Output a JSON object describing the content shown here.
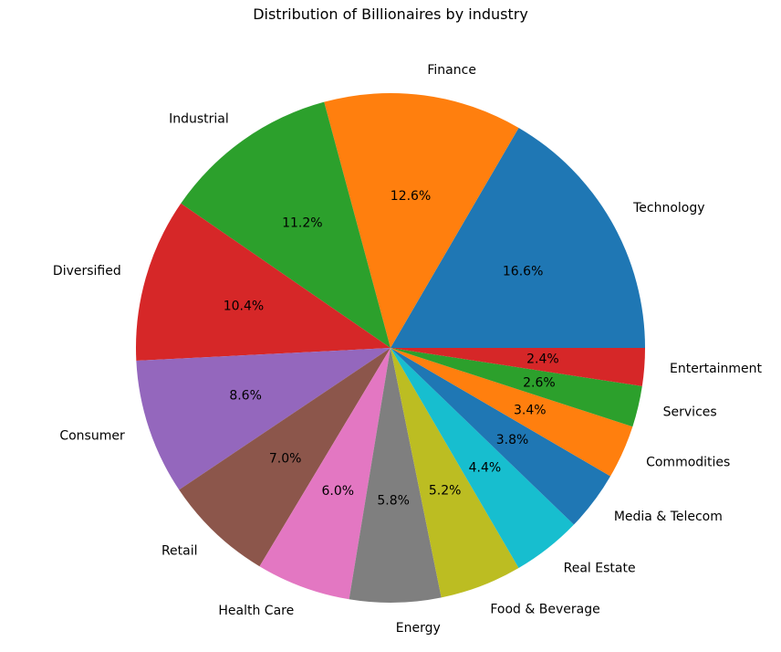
{
  "chart_data": {
    "type": "pie",
    "title": "Distribution of Billionaires by industry",
    "slices": [
      {
        "label": "Technology",
        "value": 16.6,
        "pct_label": "16.6%",
        "color": "#1f77b4"
      },
      {
        "label": "Finance",
        "value": 12.6,
        "pct_label": "12.6%",
        "color": "#ff7f0e"
      },
      {
        "label": "Industrial",
        "value": 11.2,
        "pct_label": "11.2%",
        "color": "#2ca02c"
      },
      {
        "label": "Diversified",
        "value": 10.4,
        "pct_label": "10.4%",
        "color": "#d62728"
      },
      {
        "label": "Consumer",
        "value": 8.6,
        "pct_label": "8.6%",
        "color": "#9467bd"
      },
      {
        "label": "Retail",
        "value": 7.0,
        "pct_label": "7.0%",
        "color": "#8c564b"
      },
      {
        "label": "Health Care",
        "value": 6.0,
        "pct_label": "6.0%",
        "color": "#e377c2"
      },
      {
        "label": "Energy",
        "value": 5.8,
        "pct_label": "5.8%",
        "color": "#7f7f7f"
      },
      {
        "label": "Food & Beverage",
        "value": 5.2,
        "pct_label": "5.2%",
        "color": "#bcbd22"
      },
      {
        "label": "Real Estate",
        "value": 4.4,
        "pct_label": "4.4%",
        "color": "#17becf"
      },
      {
        "label": "Media & Telecom",
        "value": 3.8,
        "pct_label": "3.8%",
        "color": "#1f77b4"
      },
      {
        "label": "Commodities",
        "value": 3.4,
        "pct_label": "3.4%",
        "color": "#ff7f0e"
      },
      {
        "label": "Services",
        "value": 2.6,
        "pct_label": "2.6%",
        "color": "#2ca02c"
      },
      {
        "label": "Entertainment",
        "value": 2.4,
        "pct_label": "2.4%",
        "color": "#d62728"
      }
    ],
    "start_angle_deg": 0,
    "direction": "counterclockwise"
  }
}
